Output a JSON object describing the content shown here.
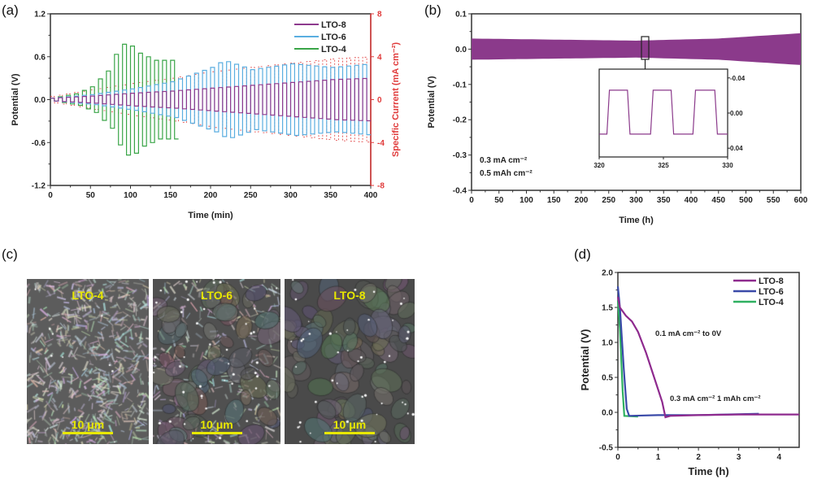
{
  "chart_data": [
    {
      "panel": "(a)",
      "type": "line",
      "xlabel": "Time (min)",
      "ylabel": "Potential (V)",
      "y2label": "Specific Current (mA cm⁻²)",
      "xlim": [
        0,
        400
      ],
      "ylim": [
        -1.2,
        1.2
      ],
      "y2lim": [
        -8,
        8
      ],
      "xticks": [
        "0",
        "50",
        "100",
        "150",
        "200",
        "250",
        "300",
        "350",
        "400"
      ],
      "yticks": [
        "-1.2",
        "-0.6",
        "0.0",
        "0.6",
        "1.2"
      ],
      "y2ticks": [
        "-8",
        "-4",
        "0",
        "4",
        "8"
      ],
      "legend_position": "top-right",
      "cycle_period_min": 10,
      "series": [
        {
          "name": "LTO-8",
          "color": "#8e3a8e",
          "amplitude_envelope": [
            [
              0,
              0.02
            ],
            [
              50,
              0.05
            ],
            [
              100,
              0.09
            ],
            [
              150,
              0.12
            ],
            [
              200,
              0.16
            ],
            [
              250,
              0.2
            ],
            [
              300,
              0.24
            ],
            [
              350,
              0.28
            ],
            [
              400,
              0.3
            ]
          ]
        },
        {
          "name": "LTO-6",
          "color": "#5aaee0",
          "amplitude_envelope": [
            [
              0,
              0.02
            ],
            [
              50,
              0.07
            ],
            [
              100,
              0.15
            ],
            [
              150,
              0.25
            ],
            [
              200,
              0.45
            ],
            [
              215,
              0.55
            ],
            [
              250,
              0.42
            ],
            [
              300,
              0.5
            ],
            [
              350,
              0.45
            ],
            [
              400,
              0.5
            ]
          ]
        },
        {
          "name": "LTO-4",
          "color": "#3aa548",
          "amplitude_envelope": [
            [
              0,
              0.02
            ],
            [
              30,
              0.08
            ],
            [
              50,
              0.18
            ],
            [
              70,
              0.4
            ],
            [
              85,
              0.75
            ],
            [
              95,
              0.8
            ],
            [
              110,
              0.65
            ],
            [
              130,
              0.55
            ],
            [
              150,
              0.55
            ],
            [
              160,
              0.3
            ]
          ]
        }
      ],
      "current": {
        "color": "#e03a3a",
        "amplitude_envelope": [
          [
            0,
            0.3
          ],
          [
            100,
            1.5
          ],
          [
            150,
            2
          ],
          [
            200,
            2.6
          ],
          [
            250,
            3
          ],
          [
            300,
            3.4
          ],
          [
            350,
            3.8
          ],
          [
            400,
            4
          ]
        ]
      }
    },
    {
      "panel": "(b)",
      "type": "area",
      "xlabel": "Time (h)",
      "ylabel": "Potential (V)",
      "xlim": [
        0,
        600
      ],
      "ylim": [
        -0.4,
        0.1
      ],
      "xticks": [
        "0",
        "50",
        "100",
        "150",
        "200",
        "250",
        "300",
        "350",
        "400",
        "450",
        "500",
        "550",
        "600"
      ],
      "yticks": [
        "-0.4",
        "-0.3",
        "-0.2",
        "-0.1",
        "0.0",
        "0.1"
      ],
      "color": "#8b3a8b",
      "band_halfwidth": [
        [
          0,
          0.03
        ],
        [
          100,
          0.028
        ],
        [
          300,
          0.024
        ],
        [
          450,
          0.03
        ],
        [
          600,
          0.045
        ]
      ],
      "annotations": [
        "0.3 mA cm⁻²",
        "0.5 mAh cm⁻²"
      ],
      "inset": {
        "xlim": [
          320,
          330
        ],
        "xticks": [
          "320",
          "325",
          "330"
        ],
        "yticks": [
          "-0.04",
          "0.00",
          "0.04"
        ],
        "wave": [
          [
            320,
            0.024
          ],
          [
            320.6,
            0.024
          ],
          [
            320.8,
            -0.026
          ],
          [
            322.2,
            -0.026
          ],
          [
            322.4,
            0.024
          ],
          [
            324,
            0.024
          ],
          [
            324.2,
            -0.026
          ],
          [
            325.6,
            -0.026
          ],
          [
            325.8,
            0.024
          ],
          [
            327.3,
            0.024
          ],
          [
            327.5,
            -0.026
          ],
          [
            329,
            -0.026
          ],
          [
            329.2,
            0.024
          ],
          [
            330,
            0.024
          ]
        ]
      }
    },
    {
      "panel": "(d)",
      "type": "line",
      "xlabel": "Time (h)",
      "ylabel": "Potential (V)",
      "xlim": [
        0,
        4.5
      ],
      "ylim": [
        -0.5,
        2.0
      ],
      "xticks": [
        "0",
        "1",
        "2",
        "3",
        "4"
      ],
      "yticks": [
        "-0.5",
        "0.0",
        "0.5",
        "1.0",
        "1.5",
        "2.0"
      ],
      "legend_position": "top-right",
      "annotations": [
        "0.1 mA cm⁻² to  0V",
        "0.3 mA cm⁻²  1 mAh cm⁻²"
      ],
      "series": [
        {
          "name": "LTO-8",
          "color": "#8e2a8e",
          "points": [
            [
              0,
              1.65
            ],
            [
              0.05,
              1.5
            ],
            [
              0.2,
              1.38
            ],
            [
              0.35,
              1.3
            ],
            [
              0.5,
              1.15
            ],
            [
              0.7,
              0.85
            ],
            [
              0.9,
              0.5
            ],
            [
              1.1,
              0.15
            ],
            [
              1.18,
              -0.07
            ],
            [
              1.3,
              -0.05
            ],
            [
              2,
              -0.04
            ],
            [
              3,
              -0.03
            ],
            [
              4.5,
              -0.03
            ]
          ]
        },
        {
          "name": "LTO-6",
          "color": "#3a4aa8",
          "points": [
            [
              0,
              1.8
            ],
            [
              0.05,
              1.5
            ],
            [
              0.15,
              0.6
            ],
            [
              0.22,
              0.05
            ],
            [
              0.28,
              -0.05
            ],
            [
              1,
              -0.04
            ],
            [
              2,
              -0.04
            ],
            [
              3.5,
              -0.02
            ]
          ]
        },
        {
          "name": "LTO-4",
          "color": "#2fb060",
          "points": [
            [
              0,
              1.6
            ],
            [
              0.05,
              1.2
            ],
            [
              0.12,
              0.3
            ],
            [
              0.16,
              -0.05
            ],
            [
              0.5,
              -0.06
            ]
          ]
        }
      ]
    }
  ],
  "panels": {
    "a": "(a)",
    "b": "(b)",
    "c": "(c)",
    "d": "(d)"
  },
  "sem_images": [
    {
      "label": "LTO-4",
      "scale_bar": "10 μm"
    },
    {
      "label": "LTO-6",
      "scale_bar": "10 μm"
    },
    {
      "label": "LTO-8",
      "scale_bar": "10 μm"
    }
  ]
}
